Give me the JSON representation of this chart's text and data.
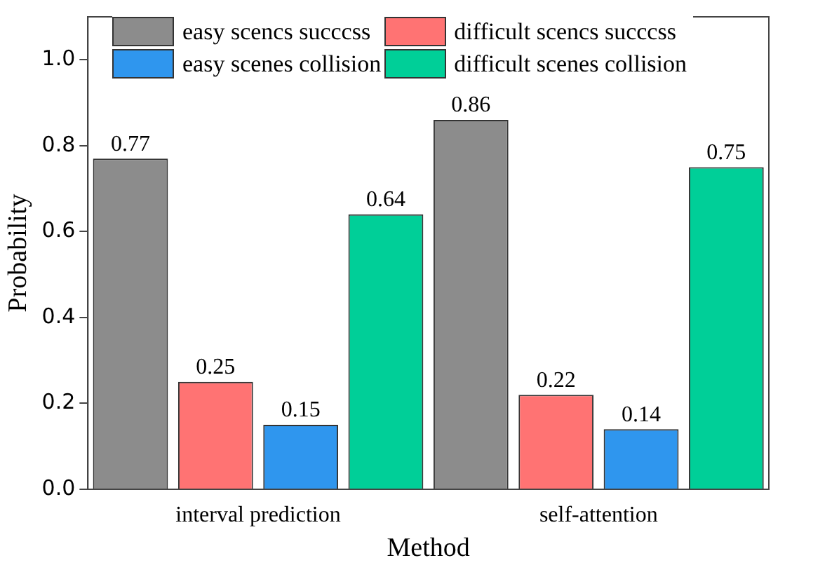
{
  "chart_data": {
    "type": "bar",
    "xlabel": "Method",
    "ylabel": "Probability",
    "categories": [
      "interval prediction",
      "self-attention"
    ],
    "series": [
      {
        "name": "easy scencs succcss",
        "color": "#8c8c8c",
        "values": [
          0.77,
          0.86
        ]
      },
      {
        "name": "difficult scencs succcss",
        "color": "#ff7373",
        "values": [
          0.25,
          0.22
        ]
      },
      {
        "name": "easy scenes collision",
        "color": "#2f96ee",
        "values": [
          0.15,
          0.14
        ]
      },
      {
        "name": "difficult scenes collision",
        "color": "#00cf98",
        "values": [
          0.64,
          0.75
        ]
      }
    ],
    "ylim": [
      0,
      1.1
    ],
    "yticks": [
      {
        "value": 0,
        "label": "0.0"
      },
      0.2,
      0.4,
      0.6,
      0.8,
      {
        "value": 1,
        "label": "1.0"
      }
    ],
    "data_labels": true,
    "grid": false,
    "legend": "top"
  }
}
